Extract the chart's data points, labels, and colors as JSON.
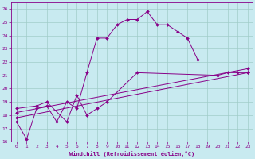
{
  "xlabel": "Windchill (Refroidissement éolien,°C)",
  "xlim": [
    -0.5,
    23.5
  ],
  "ylim": [
    16,
    26.5
  ],
  "xticks": [
    0,
    1,
    2,
    3,
    4,
    5,
    6,
    7,
    8,
    9,
    10,
    11,
    12,
    13,
    14,
    15,
    16,
    17,
    18,
    19,
    20,
    21,
    22,
    23
  ],
  "yticks": [
    16,
    17,
    18,
    19,
    20,
    21,
    22,
    23,
    24,
    25,
    26
  ],
  "bg_color": "#c8eaf0",
  "line_color": "#880088",
  "grid_color": "#a0ccc8",
  "series": [
    {
      "x": [
        0,
        1,
        2,
        3,
        4,
        5,
        6,
        7,
        8,
        9,
        10,
        11,
        12,
        13,
        14,
        15,
        16,
        17,
        18
      ],
      "y": [
        17.5,
        16.2,
        18.5,
        18.7,
        17.5,
        19.0,
        18.5,
        21.2,
        23.8,
        23.8,
        24.8,
        25.2,
        25.2,
        25.8,
        24.8,
        24.8,
        24.3,
        23.8,
        22.2
      ]
    },
    {
      "x": [
        0,
        2,
        3,
        5,
        6,
        7,
        8,
        9,
        12,
        20,
        21,
        22,
        23
      ],
      "y": [
        18.5,
        18.7,
        19.0,
        17.5,
        19.5,
        18.0,
        18.5,
        19.0,
        21.2,
        21.0,
        21.2,
        21.2,
        21.2
      ]
    },
    {
      "x": [
        0,
        23
      ],
      "y": [
        18.2,
        21.5
      ]
    },
    {
      "x": [
        0,
        23
      ],
      "y": [
        17.8,
        21.2
      ]
    }
  ]
}
